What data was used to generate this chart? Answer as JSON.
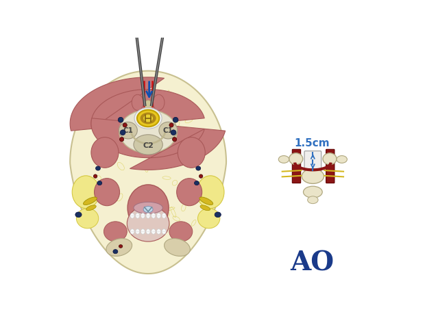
{
  "bg_color": "#ffffff",
  "skin_fill": "#f5f0d0",
  "skin_edge": "#c8c090",
  "fat_fill": "#f0e888",
  "fat_edge": "#d4c840",
  "muscle_fill": "#c47878",
  "muscle_dark": "#a85858",
  "muscle_lt": "#d49090",
  "bone_fill": "#d8ceaa",
  "bone_light": "#eae4c8",
  "bone_edge": "#b0a880",
  "sc_yellow": "#e8c820",
  "sc_brown": "#b08010",
  "sc_center": "#f0d840",
  "vein_blue": "#1a3060",
  "art_red": "#8b1515",
  "nerve_yellow": "#d4b820",
  "incision_red": "#cc1010",
  "arrow_blue": "#1050b0",
  "dashed_blue": "#3070c0",
  "instr_dark": "#404040",
  "instr_light": "#888888",
  "ao_blue": "#1a3a8a",
  "label_15cm": "1.5cm",
  "label_AO": "AO",
  "label_C1": "C1",
  "label_C2": "C2"
}
